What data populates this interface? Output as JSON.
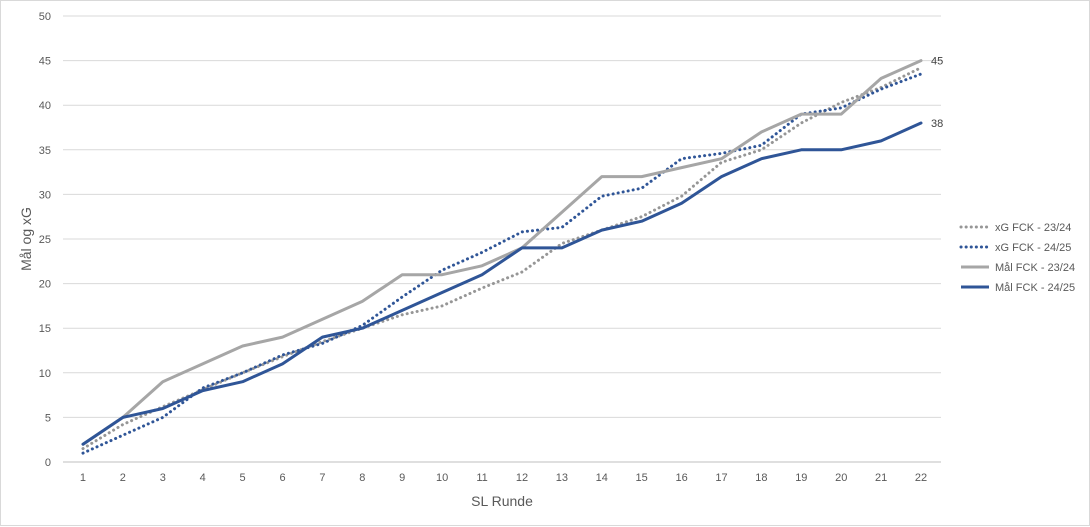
{
  "chart_data": {
    "type": "line",
    "title": "",
    "xlabel": "SL Runde",
    "ylabel": "Mål og xG",
    "x": [
      1,
      2,
      3,
      4,
      5,
      6,
      7,
      8,
      9,
      10,
      11,
      12,
      13,
      14,
      15,
      16,
      17,
      18,
      19,
      20,
      21,
      22
    ],
    "ylim": [
      0,
      50
    ],
    "yticks": [
      0,
      5,
      10,
      15,
      20,
      25,
      30,
      35,
      40,
      45,
      50
    ],
    "grid": true,
    "legend_position": "right",
    "series": [
      {
        "name": "xG FCK - 23/24",
        "color": "#969696",
        "style": "dotted",
        "values": [
          1.5,
          4.2,
          6.2,
          8.1,
          10.0,
          11.8,
          13.5,
          15.0,
          16.5,
          17.5,
          19.5,
          21.3,
          24.5,
          26.0,
          27.5,
          29.8,
          33.6,
          35.0,
          38.0,
          40.3,
          42.0,
          44.2
        ]
      },
      {
        "name": "xG FCK - 24/25",
        "color": "#2f5597",
        "style": "dotted",
        "values": [
          1.0,
          3.0,
          5.0,
          8.3,
          10.0,
          12.0,
          13.3,
          15.3,
          18.5,
          21.5,
          23.5,
          25.8,
          26.3,
          29.8,
          30.7,
          34.0,
          34.6,
          35.5,
          39.0,
          39.7,
          41.8,
          43.5
        ]
      },
      {
        "name": "Mål FCK - 23/24",
        "color": "#a6a6a6",
        "style": "solid",
        "values": [
          2,
          5,
          9,
          11,
          13,
          14,
          16,
          18,
          21,
          21,
          22,
          24,
          28,
          32,
          32,
          33,
          34,
          37,
          39,
          39,
          43,
          45
        ]
      },
      {
        "name": "Mål FCK - 24/25",
        "color": "#2f5597",
        "style": "solid",
        "values": [
          2,
          5,
          6,
          8,
          9,
          11,
          14,
          15,
          17,
          19,
          21,
          24,
          24,
          26,
          27,
          29,
          32,
          34,
          35,
          35,
          36,
          38
        ]
      }
    ],
    "annotations": [
      {
        "series": "Mål FCK - 23/24",
        "x": 22,
        "text": "45"
      },
      {
        "series": "Mål FCK - 24/25",
        "x": 22,
        "text": "38"
      }
    ]
  }
}
